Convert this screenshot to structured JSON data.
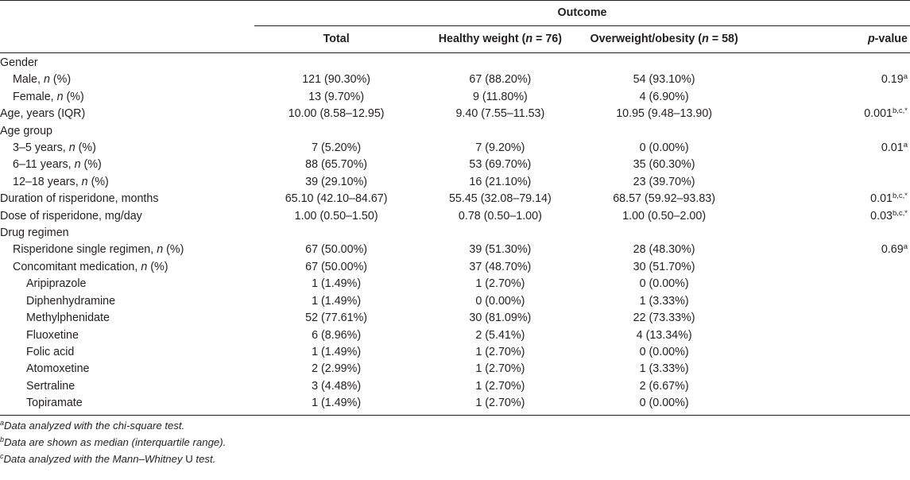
{
  "header": {
    "outcome": "Outcome",
    "col_total": "Total",
    "col_healthy": "Healthy weight (",
    "col_healthy_n": "n",
    "col_healthy_tail": " = 76)",
    "col_over": "Overweight/obesity (",
    "col_over_n": "n",
    "col_over_tail": " = 58)",
    "col_p_italic": "p",
    "col_p_tail": "-value"
  },
  "rows": [
    {
      "label": "Gender"
    },
    {
      "label": "Male, ",
      "n": "n",
      "suffix": " (%)",
      "total": "121 (90.30%)",
      "healthy": "67 (88.20%)",
      "over": "54 (93.10%)",
      "p": "0.19",
      "p_sup": "a"
    },
    {
      "label": "Female, ",
      "n": "n",
      "suffix": " (%)",
      "total": "13 (9.70%)",
      "healthy": "9 (11.80%)",
      "over": "4 (6.90%)"
    },
    {
      "label": "Age, years (IQR)",
      "total": "10.00 (8.58–12.95)",
      "healthy": "9.40 (7.55–11.53)",
      "over": "10.95 (9.48–13.90)",
      "p": "0.001",
      "p_sup": "b,c,*"
    },
    {
      "label": "Age group"
    },
    {
      "label": "3–5 years, ",
      "n": "n",
      "suffix": " (%)",
      "total": "7 (5.20%)",
      "healthy": "7 (9.20%)",
      "over": "0 (0.00%)",
      "p": "0.01",
      "p_sup": "a"
    },
    {
      "label": "6–11 years, ",
      "n": "n",
      "suffix": " (%)",
      "total": "88 (65.70%)",
      "healthy": "53 (69.70%)",
      "over": "35 (60.30%)"
    },
    {
      "label": "12–18 years, ",
      "n": "n",
      "suffix": " (%)",
      "total": "39 (29.10%)",
      "healthy": "16 (21.10%)",
      "over": "23 (39.70%)"
    },
    {
      "label": "Duration of risperidone, months",
      "total": "65.10 (42.10–84.67)",
      "healthy": "55.45 (32.08–79.14)",
      "over": "68.57 (59.92–93.83)",
      "p": "0.01",
      "p_sup": "b,c,*"
    },
    {
      "label": "Dose of risperidone, mg/day",
      "total": "1.00 (0.50–1.50)",
      "healthy": "0.78 (0.50–1.00)",
      "over": "1.00 (0.50–2.00)",
      "p": "0.03",
      "p_sup": "b,c,*"
    },
    {
      "label": "Drug regimen"
    },
    {
      "label": "Risperidone single regimen, ",
      "n": "n",
      "suffix": " (%)",
      "total": "67 (50.00%)",
      "healthy": "39 (51.30%)",
      "over": "28 (48.30%)",
      "p": "0.69",
      "p_sup": "a"
    },
    {
      "label": "Concomitant medication, ",
      "n": "n",
      "suffix": " (%)",
      "total": "67 (50.00%)",
      "healthy": "37 (48.70%)",
      "over": "30 (51.70%)"
    },
    {
      "label": "Aripiprazole",
      "total": "1 (1.49%)",
      "healthy": "1 (2.70%)",
      "over": "0 (0.00%)"
    },
    {
      "label": "Diphenhydramine",
      "total": "1 (1.49%)",
      "healthy": "0 (0.00%)",
      "over": "1 (3.33%)"
    },
    {
      "label": "Methylphenidate",
      "total": "52 (77.61%)",
      "healthy": "30 (81.09%)",
      "over": "22 (73.33%)"
    },
    {
      "label": "Fluoxetine",
      "total": "6 (8.96%)",
      "healthy": "2 (5.41%)",
      "over": "4 (13.34%)"
    },
    {
      "label": "Folic acid",
      "total": "1 (1.49%)",
      "healthy": "1 (2.70%)",
      "over": "0 (0.00%)"
    },
    {
      "label": "Atomoxetine",
      "total": "2 (2.99%)",
      "healthy": "1 (2.70%)",
      "over": "1 (3.33%)"
    },
    {
      "label": "Sertraline",
      "total": "3 (4.48%)",
      "healthy": "1 (2.70%)",
      "over": "2 (6.67%)"
    },
    {
      "label": "Topiramate",
      "total": "1 (1.49%)",
      "healthy": "1 (2.70%)",
      "over": "0 (0.00%)"
    }
  ],
  "footnotes": [
    {
      "mark": "a",
      "text": "Data analyzed with the chi-square test."
    },
    {
      "mark": "b",
      "text": "Data are shown as median (interquartile range)."
    },
    {
      "mark": "c",
      "text": "Data analyzed with the Mann–Whitney ",
      "plain": "U",
      "tail": " test."
    }
  ]
}
